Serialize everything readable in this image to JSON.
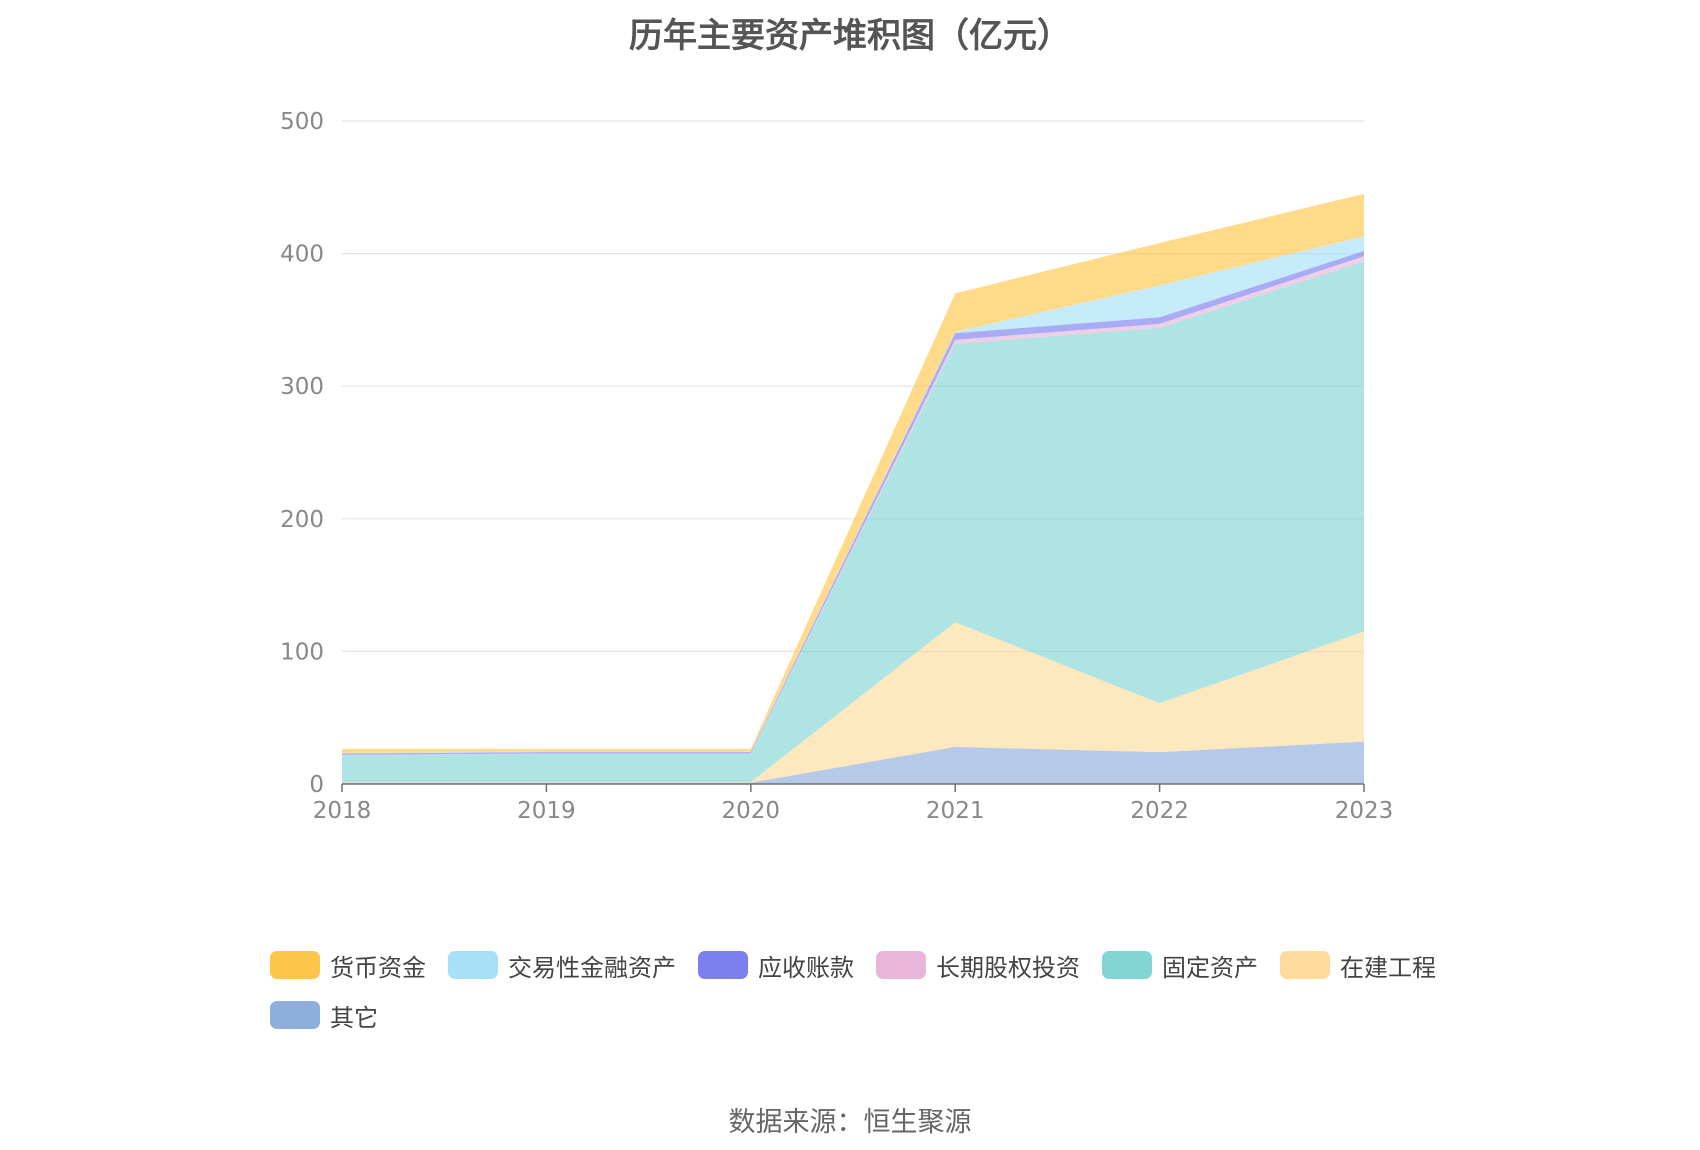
{
  "chart_data": {
    "type": "area",
    "stacked": true,
    "title": "历年主要资产堆积图（亿元）",
    "xlabel": "",
    "ylabel": "",
    "x": [
      "2018",
      "2019",
      "2020",
      "2021",
      "2022",
      "2023"
    ],
    "ylim": [
      0,
      500
    ],
    "yticks": [
      0,
      100,
      200,
      300,
      400,
      500
    ],
    "grid": true,
    "legend_position": "bottom",
    "series": [
      {
        "name": "其它",
        "color": "#8eaedc",
        "values": [
          1,
          1,
          1,
          28,
          24,
          32
        ]
      },
      {
        "name": "在建工程",
        "color": "#fedb9b",
        "values": [
          0.5,
          0.5,
          0.5,
          94,
          37,
          83
        ]
      },
      {
        "name": "固定资产",
        "color": "#83d5d5",
        "values": [
          20,
          21,
          21,
          210,
          283,
          279
        ]
      },
      {
        "name": "长期股权投资",
        "color": "#e8b6d8",
        "values": [
          0.5,
          0.5,
          0.5,
          3,
          3,
          4
        ]
      },
      {
        "name": "应收账款",
        "color": "#7b7ff0",
        "values": [
          1,
          1,
          1,
          5,
          5,
          4
        ]
      },
      {
        "name": "交易性金融资产",
        "color": "#a8e0f8",
        "values": [
          0.5,
          0.5,
          0.5,
          1,
          24,
          11
        ]
      },
      {
        "name": "货币资金",
        "color": "#fdc64a",
        "values": [
          3,
          2,
          2,
          29,
          32,
          32
        ]
      }
    ]
  },
  "legend_order": [
    "货币资金",
    "交易性金融资产",
    "应收账款",
    "长期股权投资",
    "固定资产",
    "在建工程",
    "其它"
  ],
  "source": "数据来源：恒生聚源"
}
